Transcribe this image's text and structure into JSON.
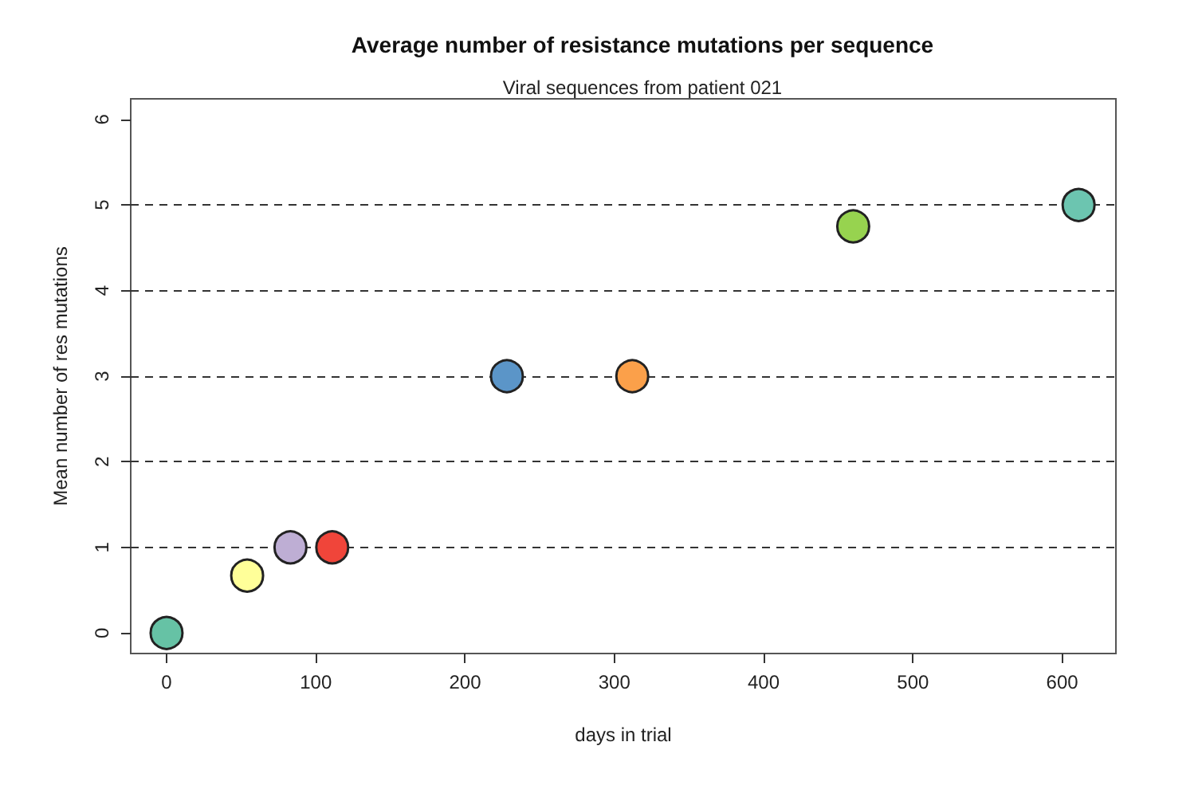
{
  "chart_data": {
    "type": "scatter",
    "title": "Average number of resistance mutations per sequence",
    "subtitle": "Viral sequences from patient 021",
    "xlabel": "days in trial",
    "ylabel": "Mean number of res mutations",
    "x": [
      0,
      54,
      83,
      111,
      228,
      312,
      460,
      611
    ],
    "values": [
      0,
      0.67,
      1,
      1,
      3,
      3,
      4.75,
      5
    ],
    "colors": [
      "#66c2a5",
      "#ffff99",
      "#beaed4",
      "#f0453a",
      "#5b95c8",
      "#fba04a",
      "#97d34f",
      "#6cc5b0"
    ],
    "xlim": [
      -24,
      636
    ],
    "ylim": [
      -0.24,
      6.24
    ],
    "xticks": [
      0,
      100,
      200,
      300,
      400,
      500,
      600
    ],
    "yticks": [
      0,
      1,
      2,
      3,
      4,
      5,
      6
    ],
    "ref_lines": [
      {
        "axis": "y",
        "value": 1,
        "line_style": "dashed"
      },
      {
        "axis": "y",
        "value": 2,
        "line_style": "dashed"
      },
      {
        "axis": "y",
        "value": 3,
        "line_style": "dashed"
      },
      {
        "axis": "y",
        "value": 4,
        "line_style": "dashed"
      },
      {
        "axis": "y",
        "value": 5,
        "line_style": "dashed"
      }
    ],
    "marker": "circle",
    "grid": false
  }
}
